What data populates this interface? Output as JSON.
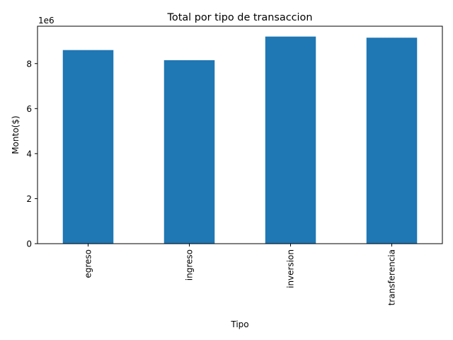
{
  "chart_data": {
    "type": "bar",
    "title": "Total por tipo de transaccion",
    "xlabel": "Tipo",
    "ylabel": "Monto($)",
    "offset_label": "1e6",
    "categories": [
      "egreso",
      "ingreso",
      "inversion",
      "transferencia"
    ],
    "values": [
      8600000,
      8150000,
      9200000,
      9150000
    ],
    "ylim": [
      0,
      9660000
    ],
    "yticks": [
      0,
      2,
      4,
      6,
      8
    ],
    "grid": false,
    "legend": "none",
    "bar_color": "#1f77b4"
  }
}
